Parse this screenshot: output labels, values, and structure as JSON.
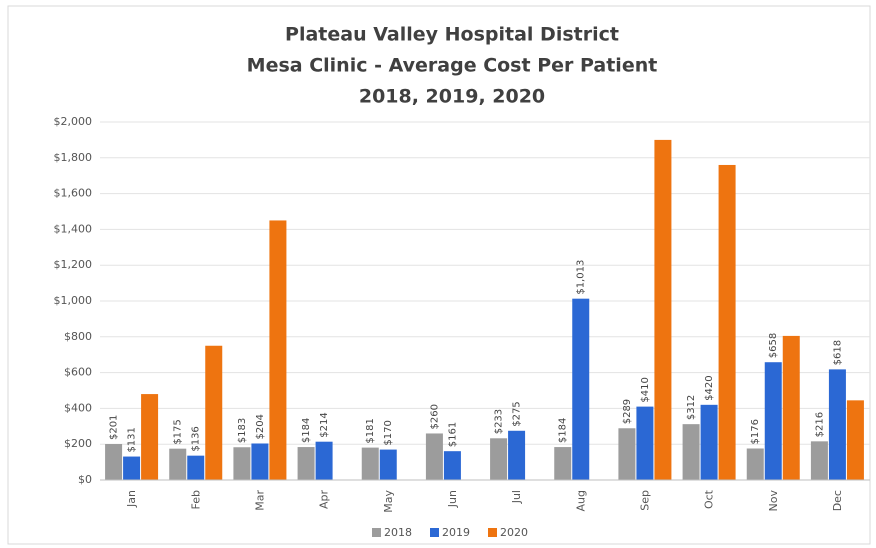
{
  "chart_data": {
    "type": "bar",
    "title": [
      "Plateau Valley Hospital District",
      "Mesa Clinic - Average Cost Per Patient",
      "2018, 2019, 2020"
    ],
    "categories": [
      "Jan",
      "Feb",
      "Mar",
      "Apr",
      "May",
      "Jun",
      "Jul",
      "Aug",
      "Sep",
      "Oct",
      "Nov",
      "Dec"
    ],
    "series": [
      {
        "name": "2018",
        "color": "#9c9c9c",
        "values": [
          201,
          175,
          183,
          184,
          181,
          260,
          233,
          184,
          289,
          312,
          176,
          216
        ],
        "value_labels": [
          "$201",
          "$175",
          "$183",
          "$184",
          "$181",
          "$260",
          "$233",
          "$184",
          "$289",
          "$312",
          "$176",
          "$216"
        ]
      },
      {
        "name": "2019",
        "color": "#2b68d4",
        "values": [
          131,
          136,
          204,
          214,
          170,
          161,
          275,
          1013,
          410,
          420,
          658,
          618
        ],
        "value_labels": [
          "$131",
          "$136",
          "$204",
          "$214",
          "$170",
          "$161",
          "$275",
          "$1,013",
          "$410",
          "$420",
          "$658",
          "$618"
        ]
      },
      {
        "name": "2020",
        "color": "#ee7410",
        "values": [
          480,
          750,
          1450,
          null,
          null,
          null,
          null,
          null,
          1900,
          1760,
          805,
          445
        ]
      }
    ],
    "ylim": [
      0,
      2000
    ],
    "yticks": [
      {
        "value": 0,
        "label": "$0"
      },
      {
        "value": 200,
        "label": "$200"
      },
      {
        "value": 400,
        "label": "$400"
      },
      {
        "value": 600,
        "label": "$600"
      },
      {
        "value": 800,
        "label": "$800"
      },
      {
        "value": 1000,
        "label": "$1,000"
      },
      {
        "value": 1200,
        "label": "$1,200"
      },
      {
        "value": 1400,
        "label": "$1,400"
      },
      {
        "value": 1600,
        "label": "$1,600"
      },
      {
        "value": 1800,
        "label": "$1,800"
      },
      {
        "value": 2000,
        "label": "$2,000"
      }
    ],
    "grid": true,
    "legend": "bottom"
  }
}
